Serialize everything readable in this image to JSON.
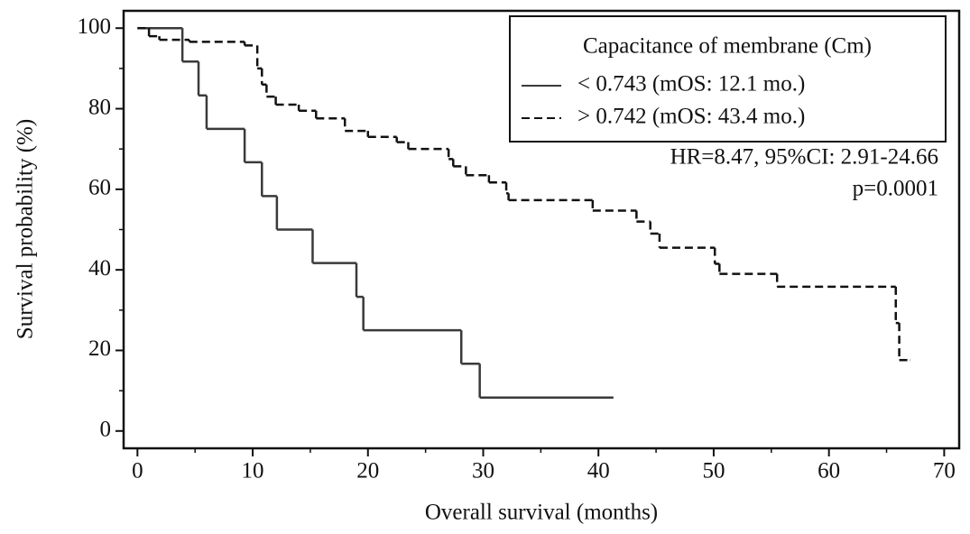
{
  "chart_data": {
    "type": "step",
    "x_label": "Overall survival (months)",
    "y_label": "Survival probability (%)",
    "legend_title": "Capacitance of membrane (Cm)",
    "annotations": [
      "HR=8.47, 95%CI: 2.91-24.66",
      "p=0.0001"
    ],
    "xlim": [
      -1.2,
      71.3
    ],
    "ylim": [
      -4.3,
      104.3
    ],
    "xticks": [
      0,
      10,
      20,
      30,
      40,
      50,
      60,
      70
    ],
    "yticks": [
      0,
      20,
      40,
      60,
      80,
      100
    ],
    "xticks_minor": [
      5,
      15,
      25,
      35,
      45,
      55,
      65
    ],
    "yticks_minor": [
      10,
      30,
      50,
      70,
      90
    ],
    "series": [
      {
        "name": "< 0.743 (mOS: 12.1 mo.)",
        "color": "#3a3a3a",
        "line_style": "solid",
        "x": [
          0,
          3.9,
          5.3,
          6,
          9.3,
          10.8,
          12.1,
          15.2,
          19,
          19.6,
          28.1,
          29.7,
          41.3
        ],
        "values": [
          100,
          91.7,
          83.3,
          75,
          66.7,
          58.3,
          50,
          41.7,
          33.3,
          25,
          16.7,
          8.3,
          8.3
        ]
      },
      {
        "name": "> 0.742 (mOS: 43.4 mo.)",
        "color": "#111111",
        "line_style": "dashed",
        "x": [
          0,
          1,
          1.9,
          4.5,
          9.3,
          10.4,
          10.8,
          11.2,
          12,
          14,
          15.5,
          18,
          20,
          22.5,
          23.5,
          27,
          27.4,
          28.5,
          30.5,
          32,
          32.2,
          39.5,
          43.3,
          44.5,
          45.3,
          50.1,
          50.5,
          55.5,
          65.8,
          66.1,
          67
        ],
        "values": [
          100,
          98,
          97.1,
          96.6,
          95.7,
          90,
          86,
          83,
          81,
          79.5,
          77.6,
          74.5,
          73,
          71.7,
          70,
          67.5,
          65.7,
          63.5,
          61.7,
          59,
          57.3,
          54.7,
          52,
          49,
          45.5,
          41.5,
          39,
          35.8,
          26.8,
          17.6,
          17.6
        ]
      }
    ]
  }
}
